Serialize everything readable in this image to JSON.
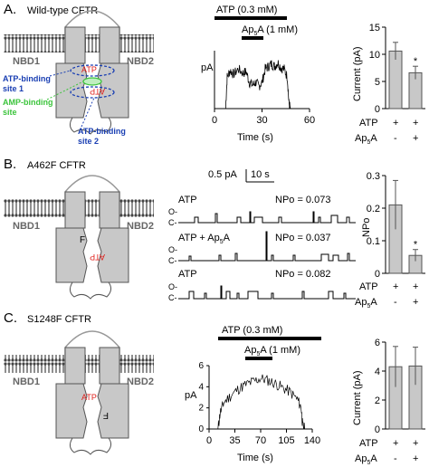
{
  "colors": {
    "protein": "#c8c8c8",
    "protein_stroke": "#555555",
    "atp_text": "#e0201c",
    "binding_site_blue": "#1a3fb3",
    "amp_site_green": "#3cc43c",
    "bar_fill": "#c8c8c8"
  },
  "panels": [
    {
      "letter": "A.",
      "title": "Wild-type CFTR",
      "nbd_left": "NBD1",
      "nbd_right": "NBD2",
      "atp_labels": [
        "ATP",
        "ATP"
      ],
      "annotations": {
        "site1": [
          "ATP-binding",
          "site 1"
        ],
        "amp": [
          "AMP-binding",
          "site"
        ],
        "site2": [
          "ATP-binding",
          "site 2"
        ]
      },
      "trace": {
        "ylabel": "pA",
        "xlabel": "Time (s)",
        "atp_bar": "ATP (0.3 mM)",
        "ap5a_prefix": "Ap",
        "ap5a_sub": "5",
        "ap5a_suffix": "A (1 mM)"
      }
    },
    {
      "letter": "B.",
      "title": "A462F CFTR",
      "nbd_left": "NBD1",
      "nbd_right": "NBD2",
      "atp_labels": [
        "F",
        "ATP"
      ],
      "scale": {
        "current": "0.5 pA",
        "time": "10 s"
      },
      "traces": [
        {
          "label": "ATP",
          "npo": "NPo = 0.073"
        },
        {
          "label_prefix": "ATP + Ap",
          "label_sub": "5",
          "label_suffix": "A",
          "npo": "NPo = 0.037"
        },
        {
          "label": "ATP",
          "npo": "NPo = 0.082"
        }
      ],
      "state_labels": {
        "open": "O-",
        "closed": "C-"
      }
    },
    {
      "letter": "C.",
      "title": "S1248F CFTR",
      "nbd_left": "NBD1",
      "nbd_right": "NBD2",
      "atp_labels": [
        "ATP",
        "F"
      ],
      "trace": {
        "ylabel": "pA",
        "xlabel": "Time (s)",
        "atp_bar": "ATP (0.3 mM)",
        "ap5a_prefix": "Ap",
        "ap5a_sub": "5",
        "ap5a_suffix": "A (1 mM)"
      }
    }
  ],
  "bar_row_labels": {
    "row1": "ATP",
    "row2_prefix": "Ap",
    "row2_sub": "5",
    "row2_suffix": "A",
    "plus": "+",
    "minus": "-"
  },
  "chart_data": [
    {
      "type": "line",
      "ylabel": "pA",
      "xlabel": "Time (s)",
      "xlim": [
        0,
        60
      ],
      "ylim": [
        0,
        2.2
      ],
      "xticks": [
        "0",
        "30",
        "60"
      ],
      "atp_window": [
        7,
        47
      ],
      "ap5a_window": [
        20,
        32
      ],
      "x": [
        0,
        5,
        7,
        8,
        10,
        12,
        15,
        18,
        20,
        22,
        24,
        26,
        28,
        30,
        32,
        34,
        36,
        38,
        40,
        42,
        44,
        46,
        47,
        48
      ],
      "y": [
        0,
        0,
        0,
        1.2,
        1.45,
        1.3,
        1.5,
        1.35,
        1.4,
        1.0,
        0.9,
        1.0,
        0.85,
        1.0,
        1.5,
        1.6,
        1.7,
        1.6,
        1.75,
        1.55,
        1.5,
        1.2,
        0.2,
        0
      ]
    },
    {
      "type": "bar",
      "ylabel": "Current (pA)",
      "ylim": [
        0,
        15
      ],
      "yticks": [
        "0",
        "5",
        "10",
        "15"
      ],
      "categories": [
        "ATP",
        "ATP + Ap5A"
      ],
      "values": [
        10.6,
        6.6
      ],
      "errors": [
        1.6,
        1.2
      ],
      "significance": [
        "",
        "*"
      ]
    },
    {
      "type": "bar",
      "ylabel": "NPo",
      "ylim": [
        0,
        0.3
      ],
      "yticks": [
        "0",
        "0.1",
        "0.2",
        "0.3"
      ],
      "categories": [
        "ATP",
        "ATP + Ap5A"
      ],
      "values": [
        0.21,
        0.055
      ],
      "errors": [
        0.075,
        0.018
      ],
      "significance": [
        "",
        "*"
      ]
    },
    {
      "type": "line",
      "ylabel": "pA",
      "xlabel": "Time (s)",
      "xlim": [
        0,
        140
      ],
      "ylim": [
        0,
        6
      ],
      "xticks": [
        "0",
        "35",
        "70",
        "105",
        "140"
      ],
      "yticks": [
        "0",
        "2",
        "4",
        "6"
      ],
      "atp_window": [
        12,
        125
      ],
      "ap5a_window": [
        63,
        93
      ],
      "x": [
        0,
        10,
        12,
        15,
        20,
        30,
        40,
        50,
        60,
        70,
        80,
        90,
        100,
        110,
        120,
        125,
        127,
        130,
        140
      ],
      "y": [
        0,
        0,
        0,
        1.5,
        2.5,
        3.2,
        3.8,
        4.2,
        4.5,
        4.8,
        4.6,
        4.3,
        3.9,
        3.5,
        2.8,
        2.0,
        0.3,
        0,
        0
      ]
    },
    {
      "type": "bar",
      "ylabel": "Current (pA)",
      "ylim": [
        0,
        6
      ],
      "yticks": [
        "0",
        "2",
        "4",
        "6"
      ],
      "categories": [
        "ATP",
        "ATP + Ap5A"
      ],
      "values": [
        4.3,
        4.35
      ],
      "errors": [
        1.4,
        1.3
      ],
      "significance": [
        "",
        ""
      ]
    }
  ]
}
